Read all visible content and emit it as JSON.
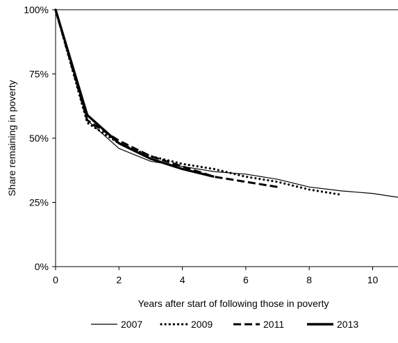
{
  "chart_data": {
    "type": "line",
    "title": "",
    "xlabel": "Years after start of following those in poverty",
    "ylabel": "Share remaining in poverty",
    "xlim": [
      0,
      10.8
    ],
    "ylim": [
      0,
      100
    ],
    "x_ticks": [
      0,
      2,
      4,
      6,
      8,
      10
    ],
    "x_tick_labels": [
      "0",
      "2",
      "4",
      "6",
      "8",
      "10"
    ],
    "y_ticks": [
      0,
      25,
      50,
      75,
      100
    ],
    "y_tick_labels": [
      "0%",
      "25%",
      "50%",
      "75%",
      "100%"
    ],
    "grid": false,
    "legend_position": "bottom",
    "series": [
      {
        "name": "2007",
        "style": "thin-solid",
        "x": [
          0,
          1,
          2,
          3,
          4,
          5,
          6,
          7,
          8,
          9,
          10,
          10.8
        ],
        "y": [
          100,
          57,
          46,
          41,
          39,
          37,
          36,
          34,
          31,
          29.5,
          28.5,
          27
        ]
      },
      {
        "name": "2009",
        "style": "dotted",
        "x": [
          0,
          1,
          2,
          3,
          4,
          5,
          6,
          7,
          8,
          9
        ],
        "y": [
          100,
          56,
          48,
          43,
          40,
          38,
          35,
          33,
          30,
          28
        ]
      },
      {
        "name": "2011",
        "style": "dashed",
        "x": [
          0,
          1,
          2,
          3,
          4,
          5,
          6,
          7
        ],
        "y": [
          100,
          57,
          49,
          43,
          39,
          35,
          33,
          31
        ]
      },
      {
        "name": "2013",
        "style": "thick-solid",
        "x": [
          0,
          1,
          2,
          3,
          4,
          5
        ],
        "y": [
          100,
          59,
          48,
          42,
          38,
          35
        ]
      }
    ]
  }
}
